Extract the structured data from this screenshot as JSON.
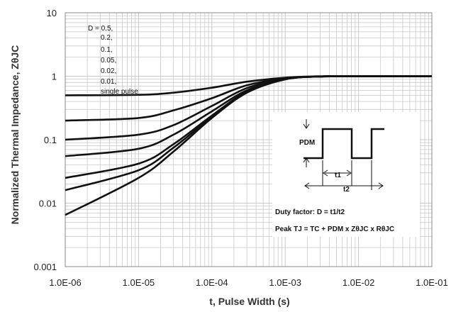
{
  "chart_data": {
    "type": "line",
    "xscale": "log",
    "yscale": "log",
    "xlim": [
      1e-06,
      0.1
    ],
    "ylim": [
      0.001,
      10
    ],
    "grid": true,
    "xlabel": "t, Pulse Width (s)",
    "ylabel": "Normalized Thermal Impedance, ZθJC",
    "x_tick_labels": [
      "1.0E-06",
      "1.0E-05",
      "1.0E-04",
      "1.0E-03",
      "1.0E-02",
      "1.0E-01"
    ],
    "x_tick_values": [
      1e-06,
      1e-05,
      0.0001,
      0.001,
      0.01,
      0.1
    ],
    "y_tick_labels": [
      "10",
      "1",
      "0.1",
      "0.01",
      "0.001"
    ],
    "y_tick_values": [
      10,
      1,
      0.1,
      0.01,
      0.001
    ],
    "legend_lines": [
      "D = 0.5,",
      "0.2,",
      "0.1,",
      "0.05,",
      "0.02,",
      "0.01,",
      "single pulse"
    ],
    "series": [
      {
        "name": "D = 0.5",
        "x": [
          1e-06,
          1e-05,
          3e-05,
          0.0001,
          0.0003,
          0.001,
          0.003,
          0.01,
          0.1
        ],
        "y": [
          0.5,
          0.51,
          0.55,
          0.66,
          0.82,
          0.95,
          1.0,
          1.0,
          1.0
        ]
      },
      {
        "name": "0.2",
        "x": [
          1e-06,
          1e-05,
          3e-05,
          0.0001,
          0.0003,
          0.001,
          0.003,
          0.01,
          0.1
        ],
        "y": [
          0.2,
          0.22,
          0.29,
          0.45,
          0.72,
          0.93,
          0.99,
          1.0,
          1.0
        ]
      },
      {
        "name": "0.1",
        "x": [
          1e-06,
          1e-05,
          3e-05,
          0.0001,
          0.0003,
          0.001,
          0.003,
          0.01,
          0.1
        ],
        "y": [
          0.1,
          0.12,
          0.17,
          0.34,
          0.65,
          0.92,
          0.99,
          1.0,
          1.0
        ]
      },
      {
        "name": "0.05",
        "x": [
          1e-06,
          1e-05,
          3e-05,
          0.0001,
          0.0003,
          0.001,
          0.003,
          0.01,
          0.1
        ],
        "y": [
          0.055,
          0.072,
          0.12,
          0.28,
          0.6,
          0.9,
          0.99,
          1.0,
          1.0
        ]
      },
      {
        "name": "0.02",
        "x": [
          1e-06,
          1e-05,
          3e-05,
          0.0001,
          0.0003,
          0.001,
          0.003,
          0.01,
          0.1
        ],
        "y": [
          0.025,
          0.042,
          0.085,
          0.24,
          0.57,
          0.9,
          0.99,
          1.0,
          1.0
        ]
      },
      {
        "name": "0.01",
        "x": [
          1e-06,
          1e-05,
          3e-05,
          0.0001,
          0.0003,
          0.001,
          0.003,
          0.01,
          0.1
        ],
        "y": [
          0.016,
          0.033,
          0.075,
          0.23,
          0.56,
          0.9,
          0.99,
          1.0,
          1.0
        ]
      },
      {
        "name": "single pulse",
        "x": [
          1e-06,
          1e-05,
          3e-05,
          0.0001,
          0.0003,
          0.001,
          0.003,
          0.01,
          0.1
        ],
        "y": [
          0.0065,
          0.025,
          0.065,
          0.22,
          0.55,
          0.89,
          0.99,
          1.0,
          1.0
        ]
      }
    ],
    "inset": {
      "pdm_label": "PDM",
      "t1_label": "t1",
      "t2_label": "t2",
      "duty_factor": "Duty factor: D = t1/t2",
      "peak_formula": "Peak TJ = TC + PDM x ZθJC x RθJC"
    },
    "colors": {
      "curve": "#111111",
      "grid": "#c8c8c8",
      "frame": "#888888"
    }
  }
}
